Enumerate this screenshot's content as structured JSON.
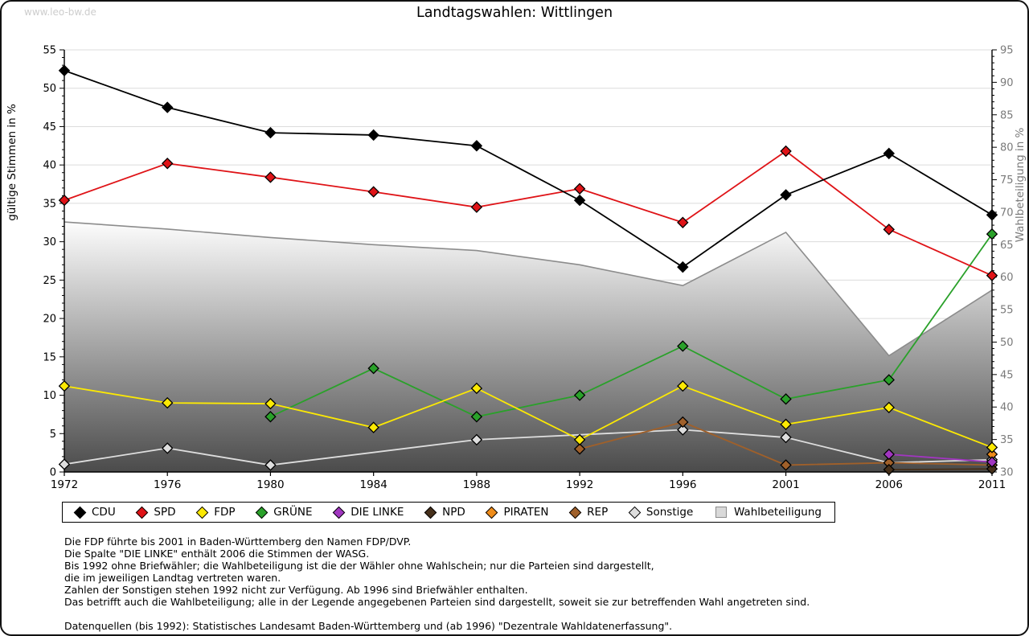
{
  "watermark": "www.leo-bw.de",
  "title": "Landtagswahlen: Wittlingen",
  "notes": [
    "Die FDP führte bis 2001 in Baden-Württemberg den Namen FDP/DVP.",
    "Die Spalte \"DIE LINKE\" enthält 2006 die Stimmen der WASG.",
    "Bis 1992 ohne Briefwähler; die Wahlbeteiligung ist die der Wähler ohne Wahlschein; nur die Parteien sind dargestellt,",
    "die im jeweiligen Landtag vertreten waren.",
    "Zahlen der Sonstigen stehen 1992 nicht zur Verfügung. Ab 1996 sind Briefwähler enthalten.",
    "Das betrifft auch die Wahlbeteiligung; alle in der Legende angegebenen Parteien sind dargestellt, soweit sie zur betreffenden Wahl angetreten sind."
  ],
  "datasource": "Datenquellen (bis 1992): Statistisches Landesamt Baden-Württemberg und (ab 1996) \"Dezentrale Wahldatenerfassung\".",
  "chart_data": {
    "type": "line",
    "title": "Landtagswahlen: Wittlingen",
    "x_label": "",
    "years": [
      1972,
      1976,
      1980,
      1984,
      1988,
      1992,
      1996,
      2001,
      2006,
      2011
    ],
    "y_left": {
      "label": "gültige Stimmen in %",
      "min": 0,
      "max": 55,
      "tick_step": 5,
      "minor_step": 1
    },
    "y_right": {
      "label": "Wahlbeteiligung in %",
      "min": 30,
      "max": 95,
      "tick_step": 5,
      "minor_step": 1
    },
    "grid": "horizontal, every 5 (left axis)",
    "legend_position": "bottom box",
    "series": [
      {
        "name": "CDU",
        "color": "#000000",
        "marker": "diamond",
        "axis": "left",
        "values": [
          52.3,
          47.5,
          44.2,
          43.9,
          42.5,
          35.4,
          26.7,
          36.1,
          41.5,
          33.5
        ]
      },
      {
        "name": "SPD",
        "color": "#df1317",
        "marker": "diamond",
        "axis": "left",
        "values": [
          35.4,
          40.2,
          38.4,
          36.5,
          34.5,
          36.9,
          32.5,
          41.8,
          31.6,
          25.6
        ]
      },
      {
        "name": "FDP",
        "color": "#fce903",
        "marker": "diamond",
        "axis": "left",
        "values": [
          11.2,
          9.0,
          8.9,
          5.8,
          10.9,
          4.2,
          11.2,
          6.2,
          8.4,
          3.2
        ]
      },
      {
        "name": "GRÜNE",
        "color": "#2aa12a",
        "marker": "diamond",
        "axis": "left",
        "values": [
          null,
          null,
          7.2,
          13.5,
          7.2,
          10.0,
          16.4,
          9.5,
          12.0,
          31.0
        ]
      },
      {
        "name": "DIE LINKE",
        "color": "#a136c0",
        "marker": "diamond",
        "axis": "left",
        "values": [
          null,
          null,
          null,
          null,
          null,
          null,
          null,
          null,
          2.3,
          1.3
        ]
      },
      {
        "name": "NPD",
        "color": "#46301b",
        "marker": "diamond",
        "axis": "left",
        "values": [
          null,
          null,
          null,
          null,
          null,
          null,
          null,
          null,
          0.3,
          0.4
        ]
      },
      {
        "name": "PIRATEN",
        "color": "#ef8c1a",
        "marker": "diamond",
        "axis": "left",
        "values": [
          null,
          null,
          null,
          null,
          null,
          null,
          null,
          null,
          null,
          2.3
        ]
      },
      {
        "name": "REP",
        "color": "#a0602a",
        "marker": "diamond",
        "axis": "left",
        "values": [
          null,
          null,
          null,
          null,
          null,
          3.0,
          6.5,
          0.9,
          1.2,
          0.9
        ]
      },
      {
        "name": "Sonstige",
        "color": "#dedede",
        "marker": "diamond",
        "axis": "left",
        "values": [
          1.0,
          3.1,
          0.9,
          null,
          4.2,
          null,
          5.5,
          4.5,
          1.2,
          1.6
        ]
      }
    ],
    "turnout_area": {
      "name": "Wahlbeteiligung",
      "axis": "right",
      "style": "gray gradient area",
      "edge_color": "#8c8c8c",
      "values": [
        68.5,
        67.4,
        66.1,
        65.0,
        64.1,
        61.9,
        58.7,
        66.9,
        47.9,
        58.0
      ]
    }
  }
}
